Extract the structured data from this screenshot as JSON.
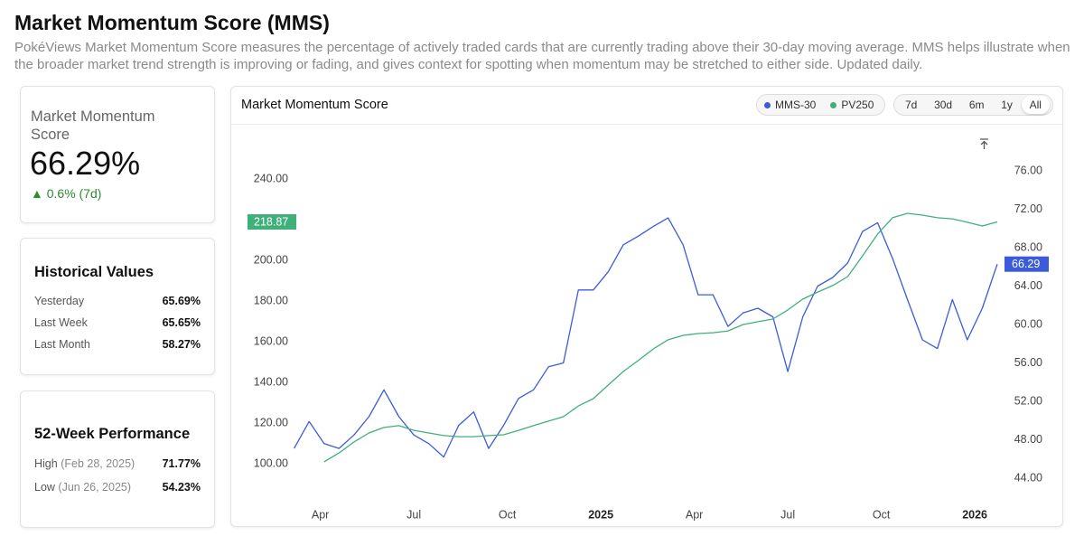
{
  "header": {
    "title": "Market Momentum Score (MMS)",
    "description": "PokéViews Market Momentum Score measures the percentage of actively traded cards that are currently trading above their 30-day moving average. MMS helps illustrate when the broader market trend strength is improving or fading, and gives context for spotting when momentum may be stretched to either side. Updated daily."
  },
  "summary": {
    "label": "Market Momentum Score",
    "value": "66.29%",
    "change": "0.6% (7d)"
  },
  "historical": {
    "title": "Historical Values",
    "rows": [
      {
        "label": "Yesterday",
        "value": "65.69%"
      },
      {
        "label": "Last Week",
        "value": "65.65%"
      },
      {
        "label": "Last Month",
        "value": "58.27%"
      }
    ]
  },
  "performance": {
    "title": "52-Week Performance",
    "rows": [
      {
        "label": "High",
        "date": "(Feb 28, 2025)",
        "value": "71.77%"
      },
      {
        "label": "Low",
        "date": "(Jun 26, 2025)",
        "value": "54.23%"
      }
    ]
  },
  "chart_data": {
    "type": "line",
    "title": "Market Momentum Score",
    "ranges": [
      "7d",
      "30d",
      "6m",
      "1y",
      "All"
    ],
    "selected_range": "All",
    "x": [
      2024.18,
      2024.22,
      2024.26,
      2024.3,
      2024.34,
      2024.38,
      2024.42,
      2024.46,
      2024.5,
      2024.54,
      2024.58,
      2024.62,
      2024.66,
      2024.7,
      2024.74,
      2024.78,
      2024.82,
      2024.86,
      2024.9,
      2024.94,
      2024.98,
      2025.02,
      2025.06,
      2025.1,
      2025.14,
      2025.18,
      2025.22,
      2025.26,
      2025.3,
      2025.34,
      2025.38,
      2025.42,
      2025.46,
      2025.5,
      2025.54,
      2025.58,
      2025.62,
      2025.66,
      2025.7,
      2025.74,
      2025.78,
      2025.82,
      2025.86,
      2025.9,
      2025.94,
      2025.98,
      2026.02,
      2026.06
    ],
    "series": [
      {
        "name": "MMS-30",
        "color": "#3b5bdb",
        "axis": "y2",
        "values": [
          47.1,
          49.9,
          47.6,
          47.1,
          48.5,
          50.4,
          53.2,
          50.4,
          48.5,
          47.6,
          46.2,
          49.5,
          50.9,
          47.1,
          49.5,
          52.3,
          53.2,
          55.6,
          56.0,
          63.6,
          63.6,
          65.5,
          68.3,
          69.2,
          70.2,
          71.1,
          68.3,
          63.1,
          63.1,
          59.8,
          61.2,
          61.7,
          60.8,
          55.1,
          60.8,
          64.0,
          64.9,
          66.4,
          69.7,
          70.6,
          66.9,
          62.6,
          58.4,
          57.5,
          62.6,
          58.4,
          61.7,
          66.29
        ]
      },
      {
        "name": "PV250",
        "color": "#3fb07a",
        "values": [
          null,
          null,
          100.9,
          105.3,
          110.7,
          115.1,
          117.8,
          118.7,
          116.4,
          115.1,
          113.8,
          113.3,
          113.3,
          113.8,
          114.2,
          116.4,
          118.7,
          120.9,
          123.1,
          128.4,
          132.0,
          138.7,
          145.3,
          150.7,
          156.4,
          160.9,
          163.1,
          164.0,
          164.4,
          165.3,
          168.4,
          169.8,
          171.1,
          175.6,
          180.9,
          184.4,
          187.6,
          192.0,
          202.2,
          212.9,
          220.9,
          223.1,
          222.2,
          220.9,
          220.4,
          218.7,
          216.9,
          218.87
        ]
      }
    ],
    "xlim": [
      2024.048,
      2026.077
    ],
    "xticks": [
      {
        "value": 2024.25,
        "label": "Apr"
      },
      {
        "value": 2024.5,
        "label": "Jul"
      },
      {
        "value": 2024.75,
        "label": "Oct"
      },
      2025,
      {
        "value": 2025.25,
        "label": "Apr"
      },
      {
        "value": 2025.5,
        "label": "Jul"
      },
      {
        "value": 2025.75,
        "label": "Oct"
      },
      2026
    ],
    "ylim": [
      83.1,
      263.1
    ],
    "yticks": [
      {
        "value": 100,
        "label": "100.00"
      },
      {
        "value": 120,
        "label": "120.00"
      },
      {
        "value": 140,
        "label": "140.00"
      },
      {
        "value": 160,
        "label": "160.00"
      },
      {
        "value": 180,
        "label": "180.00"
      },
      {
        "value": 200,
        "label": "200.00"
      },
      {
        "value": 220,
        "label": "220.00"
      },
      {
        "value": 240,
        "label": "240.00"
      }
    ],
    "y2lim": [
      41.93,
      80.05
    ],
    "y2ticks": [
      {
        "value": 44,
        "label": "44.00"
      },
      {
        "value": 48,
        "label": "48.00"
      },
      {
        "value": 52,
        "label": "52.00"
      },
      {
        "value": 56,
        "label": "56.00"
      },
      {
        "value": 60,
        "label": "60.00"
      },
      {
        "value": 64,
        "label": "64.00"
      },
      {
        "value": 68,
        "label": "68.00"
      },
      {
        "value": 72,
        "label": "72.00"
      },
      {
        "value": 76,
        "label": "76.00"
      }
    ]
  }
}
